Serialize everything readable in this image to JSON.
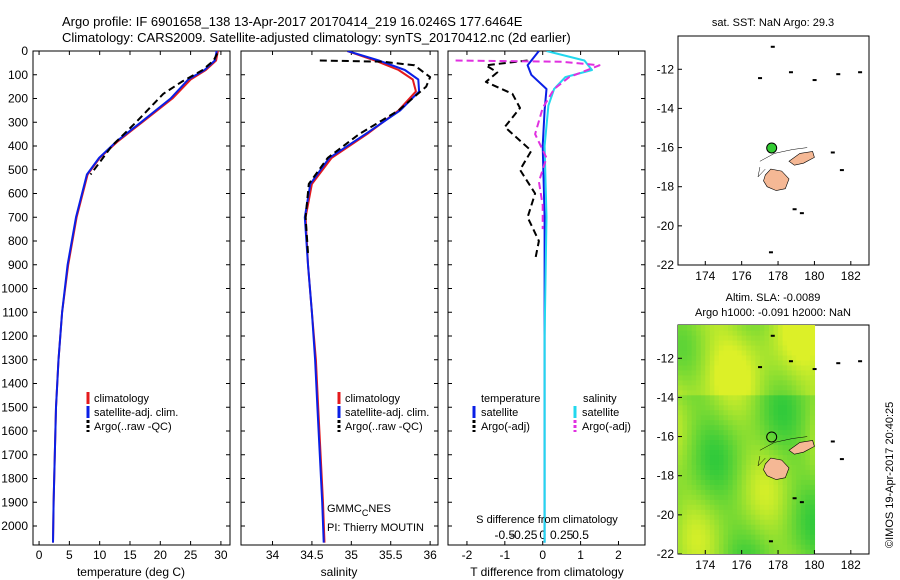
{
  "header": {
    "line1": "Argo profile: IF 6901658_138 13-Apr-2017 20170414_219 16.0246S 177.6464E",
    "line2": "Climatology: CARS2009. Satellite-adjusted climatology: synTS_20170412.nc (2d earlier)"
  },
  "map_titles": {
    "sst": "sat. SST: NaN Argo: 29.3",
    "sla1": "Altim. SLA: -0.0089",
    "sla2": "Argo h1000: -0.091 h2000: NaN"
  },
  "credits": {
    "gmmc_main": "GMMC",
    "gmmc_sub": "C",
    "gmmc_tail": "NES",
    "pi": "PI: Thierry MOUTIN",
    "imos": "©IMOS 19-Apr-2017 20:40:25"
  },
  "legends": {
    "temp": [
      "climatology",
      "satellite-adj. clim.",
      "Argo(..raw -QC)"
    ],
    "sal": [
      "climatology",
      "satellite-adj. clim.",
      "Argo(..raw -QC)"
    ],
    "diff_t_title": "temperature",
    "diff_s_title": "salinity",
    "diff_items": [
      "satellite",
      "Argo(-adj)"
    ]
  },
  "colors": {
    "climatology": "#e41a1c",
    "satellite": "#0a1fe6",
    "argo": "#000000",
    "sal_sat": "#22d8ee",
    "sal_argo": "#e030e0",
    "land": "#f5b895",
    "float_marker": "#33cc33"
  },
  "chart_data": [
    {
      "type": "line",
      "name": "temperature-profile",
      "xlabel": "temperature (deg C)",
      "ylabel": "",
      "xlim": [
        -1,
        31.5
      ],
      "ylim": [
        2080,
        0
      ],
      "xticks": [
        0,
        5,
        10,
        15,
        20,
        25,
        30
      ],
      "yticks": [
        0,
        100,
        200,
        300,
        400,
        500,
        600,
        700,
        800,
        900,
        1000,
        1100,
        1200,
        1300,
        1400,
        1500,
        1600,
        1700,
        1800,
        1900,
        2000
      ],
      "series": [
        {
          "name": "climatology",
          "x": [
            29.5,
            29.2,
            27.5,
            25,
            22,
            17,
            13,
            10,
            8,
            6.2,
            4.8,
            3.8,
            3.2,
            2.8,
            2.6,
            2.4,
            2.3
          ],
          "y": [
            0,
            40,
            80,
            120,
            200,
            300,
            380,
            450,
            520,
            700,
            900,
            1100,
            1300,
            1500,
            1700,
            1900,
            2070
          ]
        },
        {
          "name": "satellite-adj. clim.",
          "x": [
            29.3,
            29,
            27.3,
            24.6,
            21.7,
            16.8,
            12.8,
            9.9,
            7.9,
            6.1,
            4.7,
            3.8,
            3.2,
            2.8,
            2.6,
            2.4,
            2.3
          ],
          "y": [
            0,
            40,
            80,
            120,
            200,
            300,
            380,
            450,
            520,
            700,
            900,
            1100,
            1300,
            1500,
            1700,
            1900,
            2070
          ]
        },
        {
          "name": "Argo(..raw -QC)",
          "x": [
            29.4,
            28.8,
            27,
            23.5,
            20.5,
            19,
            16,
            12,
            8.5
          ],
          "y": [
            10,
            40,
            80,
            130,
            180,
            220,
            300,
            400,
            520
          ]
        }
      ]
    },
    {
      "type": "line",
      "name": "salinity-profile",
      "xlabel": "salinity",
      "ylabel": "",
      "xlim": [
        33.6,
        36.1
      ],
      "ylim": [
        2080,
        0
      ],
      "xticks": [
        34,
        34.5,
        35,
        35.5,
        36
      ],
      "series": [
        {
          "name": "climatology",
          "x": [
            34.95,
            35.3,
            35.6,
            35.78,
            35.82,
            35.6,
            35.2,
            34.75,
            34.5,
            34.42,
            34.45,
            34.5,
            34.55,
            34.58,
            34.61,
            34.64,
            34.66
          ],
          "y": [
            0,
            40,
            80,
            120,
            170,
            250,
            350,
            450,
            560,
            700,
            900,
            1100,
            1300,
            1500,
            1700,
            1900,
            2070
          ]
        },
        {
          "name": "satellite-adj. clim.",
          "x": [
            34.95,
            35.35,
            35.68,
            35.85,
            35.86,
            35.62,
            35.18,
            34.72,
            34.48,
            34.41,
            34.45,
            34.5,
            34.54,
            34.57,
            34.6,
            34.63,
            34.65
          ],
          "y": [
            0,
            40,
            80,
            120,
            170,
            250,
            350,
            450,
            560,
            700,
            900,
            1100,
            1300,
            1500,
            1700,
            1900,
            2070
          ]
        },
        {
          "name": "Argo(..raw -QC)",
          "x": [
            34.6,
            35.4,
            35.8,
            36,
            35.95,
            35.6,
            35.1,
            34.7,
            34.46,
            34.42,
            34.45
          ],
          "y": [
            40,
            45,
            60,
            110,
            150,
            250,
            350,
            450,
            560,
            700,
            850
          ]
        }
      ]
    },
    {
      "type": "line",
      "name": "difference-profile",
      "xlabel": "T difference from climatology",
      "x2label": "S difference from climatology",
      "xlim": [
        -2.5,
        2.7
      ],
      "ylim": [
        2080,
        0
      ],
      "xticks_t": [
        -2,
        -1,
        0,
        1,
        2
      ],
      "xticks_s": [
        -0.5,
        -0.25,
        0,
        0.25,
        0.5
      ],
      "series": [
        {
          "name": "temperature satellite",
          "x": [
            -0.1,
            -0.4,
            -0.3,
            0.1,
            0.05,
            0,
            0.05,
            0.05,
            0.05
          ],
          "y": [
            0,
            60,
            100,
            160,
            250,
            400,
            700,
            1200,
            2070
          ]
        },
        {
          "name": "temperature Argo(-adj)",
          "x": [
            -0.4,
            -1.5,
            -1.2,
            -1.5,
            -0.8,
            -0.6,
            -1,
            -0.3,
            -0.6,
            -0.2,
            -0.4,
            -0.1,
            -0.2
          ],
          "y": [
            40,
            60,
            90,
            130,
            180,
            240,
            320,
            420,
            500,
            600,
            700,
            800,
            880
          ]
        },
        {
          "name": "salinity satellite",
          "x": [
            0.1,
            1.1,
            1.3,
            0.6,
            0.3,
            0.15,
            0.05,
            0.1,
            0.05,
            0.05
          ],
          "y": [
            0,
            40,
            80,
            110,
            160,
            230,
            400,
            700,
            1200,
            2070
          ]
        },
        {
          "name": "salinity Argo(-adj)",
          "x": [
            -2.3,
            0.5,
            1.5,
            0.7,
            0.3,
            0,
            -0.2,
            0.1,
            -0.1,
            0,
            0
          ],
          "y": [
            40,
            45,
            60,
            110,
            160,
            240,
            350,
            450,
            550,
            650,
            750
          ]
        }
      ]
    },
    {
      "type": "scatter",
      "name": "sst-map",
      "title": "sat. SST: NaN Argo: 29.3",
      "xlim": [
        172.5,
        183
      ],
      "ylim": [
        -22,
        -10.3
      ],
      "xticks": [
        174,
        176,
        178,
        180,
        182
      ],
      "yticks": [
        -12,
        -14,
        -16,
        -18,
        -20,
        -22
      ],
      "x": [
        177.65
      ],
      "y": [
        -16.02
      ]
    },
    {
      "type": "heatmap",
      "name": "sla-map",
      "title": "Altim. SLA: -0.0089",
      "subtitle": "Argo h1000: -0.091 h2000: NaN",
      "xlim": [
        172.5,
        183
      ],
      "ylim": [
        -22,
        -10.3
      ],
      "xticks": [
        174,
        176,
        178,
        180,
        182
      ],
      "yticks": [
        -12,
        -14,
        -16,
        -18,
        -20,
        -22
      ],
      "data_extent_lon": [
        172.5,
        180
      ]
    }
  ]
}
